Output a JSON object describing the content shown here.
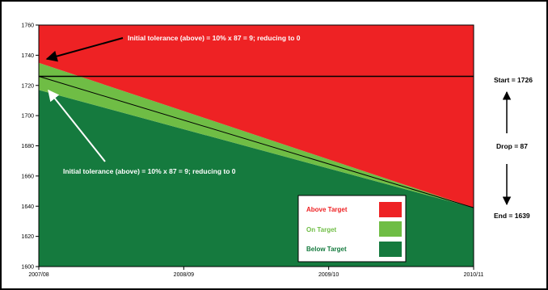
{
  "chart_data": {
    "type": "area",
    "title": "",
    "xlabel": "",
    "ylabel": "",
    "x_categories": [
      "2007/08",
      "2008/09",
      "2009/10",
      "2010/11"
    ],
    "ylim": [
      1600,
      1760
    ],
    "yticks": [
      1600,
      1620,
      1640,
      1660,
      1680,
      1700,
      1720,
      1740,
      1760
    ],
    "target": {
      "start": 1726,
      "end": 1639
    },
    "tolerance": 9,
    "start_level": 1726,
    "grid": false,
    "legend_position": "bottom-right",
    "series": [
      {
        "name": "Above Target",
        "color": "#ee2224"
      },
      {
        "name": "On Target",
        "color": "#6fbd45"
      },
      {
        "name": "Below Target",
        "color": "#157a3e"
      }
    ],
    "annotations": {
      "upper": "Initial tolerance (above) = 10% x 87 = 9; reducing to 0",
      "lower": "Initial tolerance (above) = 10% x 87 = 9; reducing to 0"
    },
    "side_labels": {
      "start": "Start = 1726",
      "drop": "Drop = 87",
      "end": "End = 1639"
    }
  }
}
